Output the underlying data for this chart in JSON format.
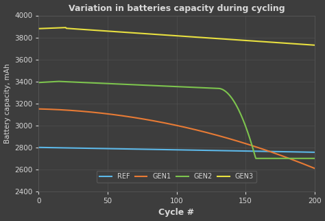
{
  "title": "Variation in batteries capacity during cycling",
  "xlabel": "Cycle #",
  "ylabel": "Battery capacity, mAh",
  "xlim": [
    0,
    200
  ],
  "ylim": [
    2400,
    4000
  ],
  "xticks": [
    0,
    50,
    100,
    150,
    200
  ],
  "yticks": [
    2400,
    2600,
    2800,
    3000,
    3200,
    3400,
    3600,
    3800,
    4000
  ],
  "background_color": "#3d3d3d",
  "text_color": "#d8d8d8",
  "grid_color": "#5a5a5a",
  "series": [
    {
      "label": "REF",
      "color": "#5db8e8"
    },
    {
      "label": "GEN1",
      "color": "#e87b35"
    },
    {
      "label": "GEN2",
      "color": "#7dc44e"
    },
    {
      "label": "GEN3",
      "color": "#e8e040"
    }
  ]
}
